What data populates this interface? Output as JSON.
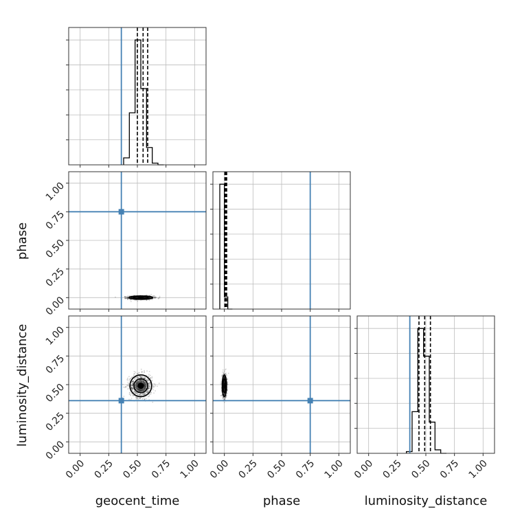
{
  "chart_data": {
    "type": "corner",
    "parameters": [
      "geocent_time",
      "phase",
      "luminosity_distance"
    ],
    "axis_labels": {
      "x": [
        "geocent_time",
        "phase",
        "luminosity_distance"
      ],
      "y": [
        "",
        "phase",
        "luminosity_distance"
      ]
    },
    "range": [
      -0.1,
      1.1
    ],
    "ticks": [
      0.0,
      0.25,
      0.5,
      0.75,
      1.0
    ],
    "tick_labels": [
      "0.00",
      "0.25",
      "0.50",
      "0.75",
      "1.00"
    ],
    "truths": [
      0.36,
      0.75,
      0.36
    ],
    "truth_color": "#4682b4",
    "grid": true,
    "histograms": [
      {
        "parameter": "geocent_time",
        "bin_edges": [
          0.38,
          0.43,
          0.48,
          0.53,
          0.58,
          0.63,
          0.68,
          0.73
        ],
        "counts": [
          0.2,
          1.5,
          3.6,
          2.2,
          0.5,
          0.05,
          0.0
        ],
        "quantiles": [
          0.5,
          0.55,
          0.59
        ]
      },
      {
        "parameter": "phase",
        "bin_edges": [
          -0.04,
          0.0,
          0.03,
          0.07
        ],
        "counts": [
          3.6,
          0.35,
          0.0
        ],
        "quantiles": [
          0.004,
          0.012,
          0.02
        ]
      },
      {
        "parameter": "luminosity_distance",
        "bin_edges": [
          0.33,
          0.38,
          0.43,
          0.48,
          0.53,
          0.58,
          0.63,
          0.68
        ],
        "counts": [
          0.05,
          1.2,
          3.6,
          2.8,
          0.9,
          0.1,
          0.0
        ],
        "quantiles": [
          0.44,
          0.49,
          0.54
        ]
      }
    ],
    "scatter_2d": [
      {
        "x_param": "geocent_time",
        "y_param": "phase",
        "center": [
          0.53,
          0.0
        ],
        "sigma": [
          0.055,
          0.008
        ]
      },
      {
        "x_param": "geocent_time",
        "y_param": "luminosity_distance",
        "center": [
          0.53,
          0.49
        ],
        "sigma": [
          0.05,
          0.05
        ]
      },
      {
        "x_param": "phase",
        "y_param": "luminosity_distance",
        "center": [
          0.0,
          0.49
        ],
        "sigma": [
          0.01,
          0.05
        ]
      }
    ],
    "line_color": "#000000"
  }
}
